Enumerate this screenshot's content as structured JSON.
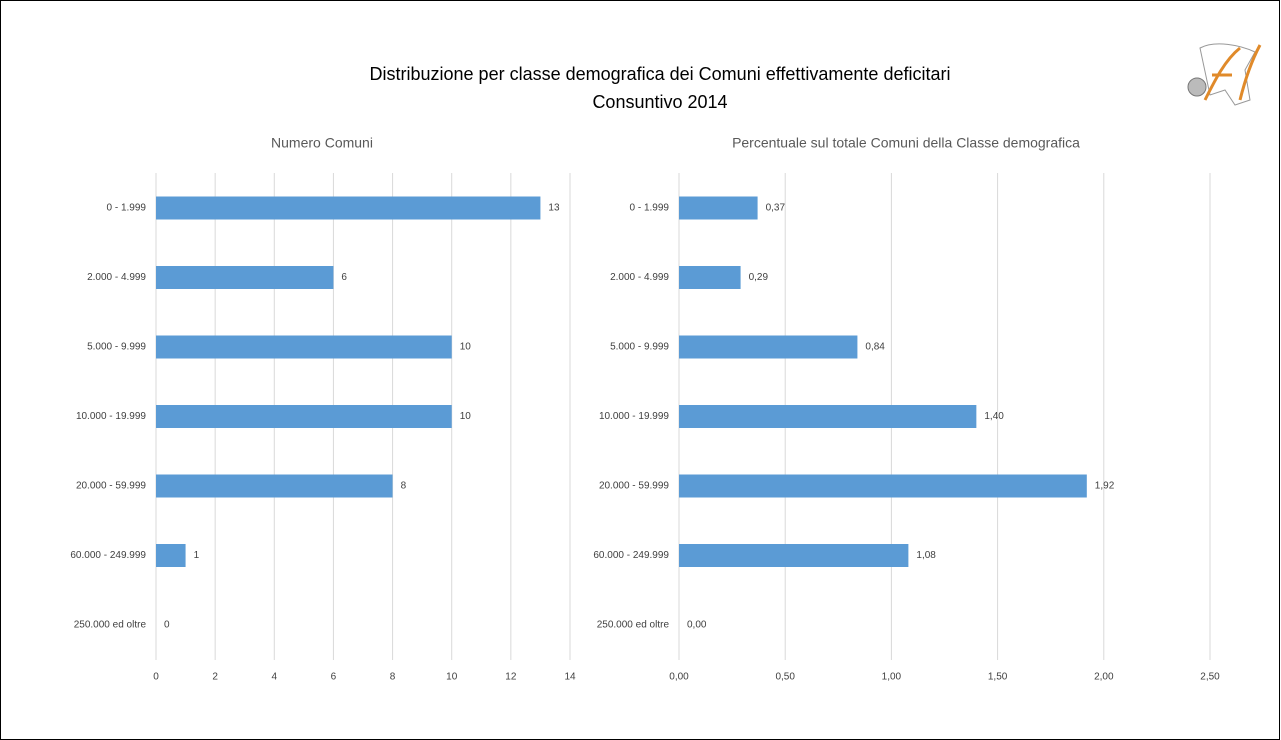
{
  "title": "Distribuzione per classe demografica dei Comuni effettivamente deficitari",
  "subtitle": "Consuntivo 2014",
  "chart_data": [
    {
      "type": "barh",
      "title": "Numero Comuni",
      "categories": [
        "0 - 1.999",
        "2.000 - 4.999",
        "5.000 - 9.999",
        "10.000 - 19.999",
        "20.000 - 59.999",
        "60.000 - 249.999",
        "250.000 ed oltre"
      ],
      "values": [
        13,
        6,
        10,
        10,
        8,
        1,
        0
      ],
      "color": "#5b9bd5",
      "xlim": [
        0,
        14
      ],
      "xticks": [
        0,
        2,
        4,
        6,
        8,
        10,
        12,
        14
      ],
      "grid": true
    },
    {
      "type": "barh",
      "title": "Percentuale sul totale Comuni della Classe demografica",
      "categories": [
        "0 - 1.999",
        "2.000 - 4.999",
        "5.000 - 9.999",
        "10.000 - 19.999",
        "20.000 - 59.999",
        "60.000 - 249.999",
        "250.000 ed oltre"
      ],
      "values": [
        0.37,
        0.29,
        0.84,
        1.4,
        1.92,
        1.08,
        0.0
      ],
      "value_labels": [
        "0,37",
        "0,29",
        "0,84",
        "1,40",
        "1,92",
        "1,08",
        "0,00"
      ],
      "color": "#5b9bd5",
      "xlim": [
        0,
        2.5
      ],
      "xticks": [
        {
          "value": 0,
          "label": "0,00"
        },
        {
          "value": 0.5,
          "label": "0,50"
        },
        {
          "value": 1,
          "label": "1,00"
        },
        {
          "value": 1.5,
          "label": "1,50"
        },
        {
          "value": 2,
          "label": "2,00"
        },
        {
          "value": 2.5,
          "label": "2,50"
        }
      ],
      "grid": true
    }
  ]
}
